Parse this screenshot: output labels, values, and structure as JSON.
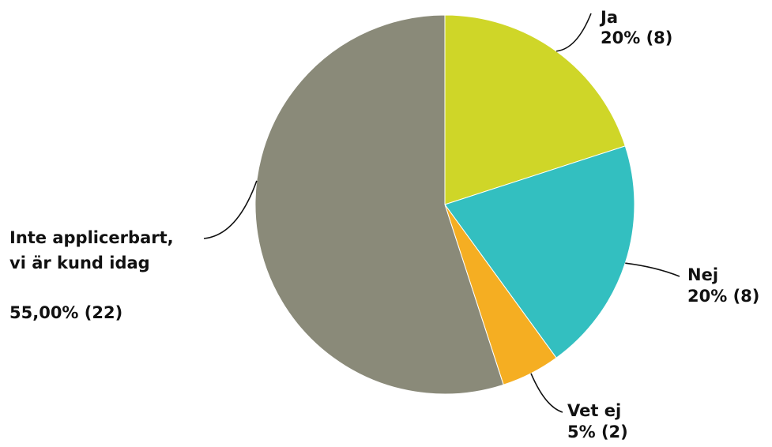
{
  "chart_data": {
    "type": "pie",
    "slices": [
      {
        "label": "Ja",
        "display": "20% (8)",
        "percent": 20,
        "count": 8,
        "color": "#cfd628"
      },
      {
        "label": "Nej",
        "display": "20% (8)",
        "percent": 20,
        "count": 8,
        "color": "#33bfc0"
      },
      {
        "label": "Vet ej",
        "display": "5% (2)",
        "percent": 5,
        "count": 2,
        "color": "#f5ae22"
      },
      {
        "label": "Inte applicerbart, vi är kund idag",
        "label_lines": [
          "Inte applicerbart,",
          "vi är kund idag"
        ],
        "display": "55,00% (22)",
        "percent": 55,
        "count": 22,
        "color": "#8a8a79"
      }
    ],
    "start": "12 o'clock",
    "direction": "clockwise",
    "legend": "none",
    "labels": "outside, with leader lines"
  }
}
